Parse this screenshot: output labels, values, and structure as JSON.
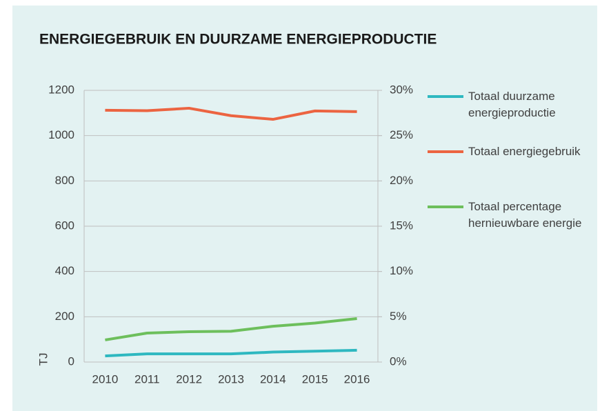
{
  "chart_data": {
    "type": "line",
    "title": "ENERGIEGEBRUIK EN DUURZAME ENERGIEPRODUCTIE",
    "y_label": "TJ",
    "categories": [
      "2010",
      "2011",
      "2012",
      "2013",
      "2014",
      "2015",
      "2016"
    ],
    "series": [
      {
        "name": "Totaal duurzame energieproductie",
        "color": "#2eb8c0",
        "values": [
          27,
          36,
          36,
          36,
          44,
          48,
          52
        ]
      },
      {
        "name": "Totaal energiegebruik",
        "color": "#ec6441",
        "values": [
          1112,
          1110,
          1121,
          1088,
          1072,
          1109,
          1106
        ]
      },
      {
        "name": "Totaal percentage hernieuwbare energie",
        "color": "#6dbf5c",
        "values": [
          2.44,
          3.2,
          3.35,
          3.4,
          3.95,
          4.3,
          4.8
        ],
        "axis": "y2"
      }
    ],
    "ylim": [
      0,
      1200
    ],
    "yticks": [
      0,
      200,
      400,
      600,
      800,
      1000,
      1200
    ],
    "y2lim": [
      0,
      30
    ],
    "y2ticks": [
      {
        "value": 0,
        "label": "0%"
      },
      {
        "value": 5,
        "label": "5%"
      },
      {
        "value": 10,
        "label": "10%"
      },
      {
        "value": 15,
        "label": "15%"
      },
      {
        "value": 20,
        "label": "20%"
      },
      {
        "value": 25,
        "label": "25%"
      },
      {
        "value": 30,
        "label": "30%"
      }
    ],
    "grid": true,
    "legend": "right"
  }
}
